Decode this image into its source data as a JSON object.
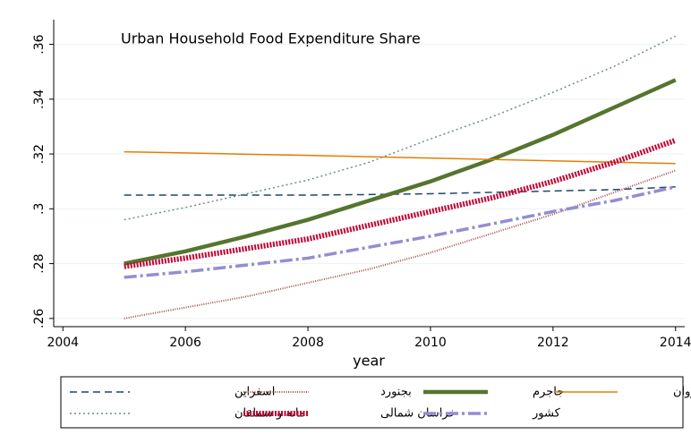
{
  "chart_data": {
    "type": "line",
    "title": "Urban Household Food Expenditure Share",
    "xlabel": "year",
    "x": [
      2005,
      2006,
      2007,
      2008,
      2009,
      2010,
      2011,
      2012,
      2013,
      2014
    ],
    "xlim": [
      2003.85,
      2014.15
    ],
    "xticks": [
      2004,
      2006,
      2008,
      2010,
      2012,
      2014
    ],
    "ylim": [
      0.257,
      0.369
    ],
    "yticks": [
      {
        "value": 0.26,
        "label": ".26"
      },
      {
        "value": 0.28,
        "label": ".28"
      },
      {
        "value": 0.3,
        "label": ".3"
      },
      {
        "value": 0.32,
        "label": ".32"
      },
      {
        "value": 0.34,
        "label": ".34"
      },
      {
        "value": 0.36,
        "label": ".36"
      }
    ],
    "grid": true,
    "legend": "bottom",
    "series": [
      {
        "name": "اسفراین",
        "color": "#1a476f",
        "values": [
          0.305,
          0.305,
          0.305,
          0.305,
          0.3052,
          0.3055,
          0.306,
          0.3065,
          0.307,
          0.308
        ]
      },
      {
        "name": "بجنورد",
        "color": "#a0524e",
        "values": [
          0.26,
          0.264,
          0.268,
          0.273,
          0.278,
          0.284,
          0.291,
          0.298,
          0.306,
          0.314
        ]
      },
      {
        "name": "جاجرم",
        "color": "#55752f",
        "values": [
          0.28,
          0.2845,
          0.29,
          0.296,
          0.303,
          0.31,
          0.318,
          0.327,
          0.337,
          0.347
        ]
      },
      {
        "name": "شیروان",
        "color": "#e37e00",
        "values": [
          0.3208,
          0.3204,
          0.3199,
          0.3195,
          0.319,
          0.3185,
          0.318,
          0.3175,
          0.317,
          0.3165
        ]
      },
      {
        "name": "مانه و سملقان",
        "color": "#6e8e84",
        "values": [
          0.296,
          0.3005,
          0.3055,
          0.3105,
          0.317,
          0.3255,
          0.3335,
          0.3425,
          0.352,
          0.363
        ]
      },
      {
        "name": "خراسان شمالی",
        "color": "#c10534",
        "values": [
          0.279,
          0.282,
          0.2855,
          0.289,
          0.294,
          0.299,
          0.304,
          0.31,
          0.317,
          0.325
        ]
      },
      {
        "name": "کشور",
        "color": "#938dd2",
        "values": [
          0.275,
          0.277,
          0.2795,
          0.282,
          0.286,
          0.29,
          0.2945,
          0.299,
          0.303,
          0.308
        ]
      }
    ]
  }
}
